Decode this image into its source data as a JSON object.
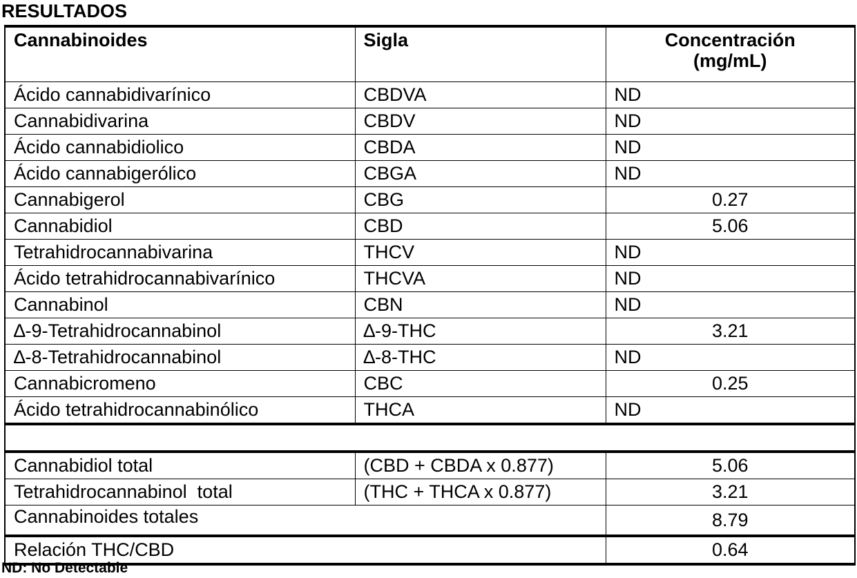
{
  "title": "RESULTADOS",
  "header": {
    "col1": "Cannabinoides",
    "col2": "Sigla",
    "col3_line1": "Concentración",
    "col3_line2": "(mg/mL)"
  },
  "rows": [
    {
      "name": "Ácido cannabidivarínico",
      "sigla": "CBDVA",
      "value": "ND",
      "nd": true
    },
    {
      "name": "Cannabidivarina",
      "sigla": "CBDV",
      "value": "ND",
      "nd": true
    },
    {
      "name": "Ácido cannabidiolico",
      "sigla": "CBDA",
      "value": "ND",
      "nd": true
    },
    {
      "name": "Ácido cannabigerólico",
      "sigla": "CBGA",
      "value": "ND",
      "nd": true
    },
    {
      "name": "Cannabigerol",
      "sigla": "CBG",
      "value": "0.27",
      "nd": false
    },
    {
      "name": "Cannabidiol",
      "sigla": "CBD",
      "value": "5.06",
      "nd": false
    },
    {
      "name": "Tetrahidrocannabivarina",
      "sigla": "THCV",
      "value": "ND",
      "nd": true
    },
    {
      "name": "Ácido tetrahidrocannabivarínico",
      "sigla": "THCVA",
      "value": "ND",
      "nd": true
    },
    {
      "name": "Cannabinol",
      "sigla": "CBN",
      "value": "ND",
      "nd": true
    },
    {
      "name": "∆-9-Tetrahidrocannabinol",
      "sigla": "∆-9-THC",
      "value": "3.21",
      "nd": false
    },
    {
      "name": "∆-8-Tetrahidrocannabinol",
      "sigla": "∆-8-THC",
      "value": "ND",
      "nd": true
    },
    {
      "name": "Cannabicromeno",
      "sigla": "CBC",
      "value": "0.25",
      "nd": false
    },
    {
      "name": "Ácido tetrahidrocannabinólico",
      "sigla": "THCA",
      "value": "ND",
      "nd": true
    }
  ],
  "totals": {
    "cbd_total": {
      "name": "Cannabidiol total",
      "formula": "(CBD + CBDA x 0.877)",
      "value": "5.06"
    },
    "thc_total": {
      "name": "Tetrahidrocannabinol  total",
      "formula": "(THC + THCA x 0.877)",
      "value": "3.21"
    },
    "cannabinoids_total": {
      "name": "Cannabinoides totales",
      "value": "8.79"
    },
    "ratio": {
      "name": "Relación THC/CBD",
      "value": "0.64"
    }
  },
  "footnote": "ND: No Detectable"
}
